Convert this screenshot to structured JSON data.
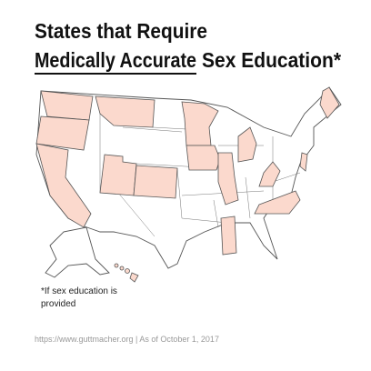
{
  "header": {
    "title_line1": "States that Require",
    "title_line2_underlined": "Medically Accurate",
    "title_line2_rest": "Sex Education*"
  },
  "footnote": {
    "line1": "*If sex education is",
    "line2": "provided"
  },
  "source": "https://www.guttmacher.org | As of October 1, 2017"
}
